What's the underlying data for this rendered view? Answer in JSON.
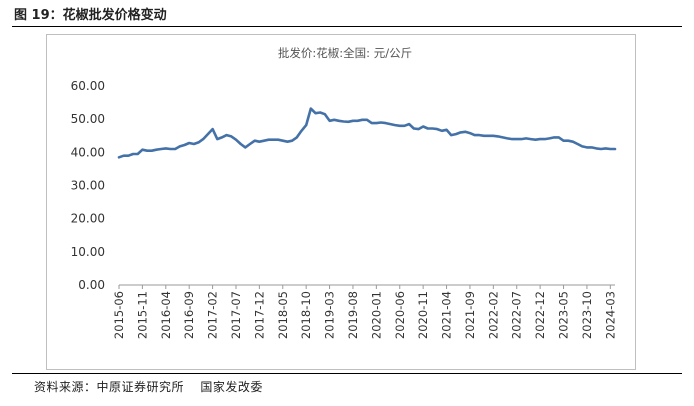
{
  "figure": {
    "title": "图 19：花椒批发价格变动",
    "source_label": "资料来源：中原证券研究所",
    "source_org": "国家发改委"
  },
  "chart_data": {
    "type": "line",
    "title": "批发价:花椒:全国: 元/公斤",
    "xlabel": "",
    "ylabel": "",
    "ylim": [
      0,
      60
    ],
    "yticks": [
      "0.00",
      "10.00",
      "20.00",
      "30.00",
      "40.00",
      "50.00",
      "60.00"
    ],
    "xticks": [
      "2015-06",
      "2015-11",
      "2016-04",
      "2016-09",
      "2017-02",
      "2017-07",
      "2017-12",
      "2018-05",
      "2018-10",
      "2019-03",
      "2019-08",
      "2020-01",
      "2020-06",
      "2020-11",
      "2021-04",
      "2021-09",
      "2022-02",
      "2022-07",
      "2022-12",
      "2023-05",
      "2023-10",
      "2024-03"
    ],
    "grid": false,
    "legend": "none",
    "line_color": "#4472a8",
    "series": [
      {
        "x": [
          "2015-06",
          "2015-07",
          "2015-08",
          "2015-09",
          "2015-10",
          "2015-11",
          "2015-12",
          "2016-01",
          "2016-02",
          "2016-03",
          "2016-04",
          "2016-05",
          "2016-06",
          "2016-07",
          "2016-08",
          "2016-09",
          "2016-10",
          "2016-11",
          "2016-12",
          "2017-01",
          "2017-02",
          "2017-03",
          "2017-04",
          "2017-05",
          "2017-06",
          "2017-07",
          "2017-08",
          "2017-09",
          "2017-10",
          "2017-11",
          "2017-12",
          "2018-01",
          "2018-02",
          "2018-03",
          "2018-04",
          "2018-05",
          "2018-06",
          "2018-07",
          "2018-08",
          "2018-09",
          "2018-10",
          "2018-11",
          "2018-12",
          "2019-01",
          "2019-02",
          "2019-03",
          "2019-04",
          "2019-05",
          "2019-06",
          "2019-07",
          "2019-08",
          "2019-09",
          "2019-10",
          "2019-11",
          "2019-12",
          "2020-01",
          "2020-02",
          "2020-03",
          "2020-04",
          "2020-05",
          "2020-06",
          "2020-07",
          "2020-08",
          "2020-09",
          "2020-10",
          "2020-11",
          "2020-12",
          "2021-01",
          "2021-02",
          "2021-03",
          "2021-04",
          "2021-05",
          "2021-06",
          "2021-07",
          "2021-08",
          "2021-09",
          "2021-10",
          "2021-11",
          "2021-12",
          "2022-01",
          "2022-02",
          "2022-03",
          "2022-04",
          "2022-05",
          "2022-06",
          "2022-07",
          "2022-08",
          "2022-09",
          "2022-10",
          "2022-11",
          "2022-12",
          "2023-01",
          "2023-02",
          "2023-03",
          "2023-04",
          "2023-05",
          "2023-06",
          "2023-07",
          "2023-08",
          "2023-09",
          "2023-10",
          "2023-11",
          "2023-12",
          "2024-01",
          "2024-02",
          "2024-03",
          "2024-04"
        ],
        "values": [
          38.5,
          39.0,
          39.0,
          39.5,
          39.5,
          40.8,
          40.5,
          40.5,
          40.8,
          41.0,
          41.2,
          41.0,
          41.0,
          41.8,
          42.2,
          42.8,
          42.5,
          43.0,
          44.0,
          45.5,
          47.0,
          44.0,
          44.5,
          45.2,
          44.8,
          43.8,
          42.5,
          41.5,
          42.5,
          43.5,
          43.2,
          43.5,
          43.8,
          43.8,
          43.8,
          43.5,
          43.2,
          43.5,
          44.5,
          46.5,
          48.2,
          53.2,
          51.8,
          52.0,
          51.5,
          49.5,
          49.8,
          49.5,
          49.3,
          49.2,
          49.5,
          49.5,
          49.8,
          49.8,
          48.8,
          48.8,
          49.0,
          48.8,
          48.5,
          48.2,
          48.0,
          48.0,
          48.5,
          47.2,
          47.0,
          47.8,
          47.2,
          47.2,
          47.0,
          46.5,
          46.8,
          45.2,
          45.5,
          46.0,
          46.2,
          45.8,
          45.2,
          45.2,
          45.0,
          45.0,
          45.0,
          44.8,
          44.5,
          44.2,
          44.0,
          44.0,
          44.0,
          44.2,
          44.0,
          43.8,
          44.0,
          44.0,
          44.2,
          44.5,
          44.5,
          43.5,
          43.5,
          43.2,
          42.5,
          41.8,
          41.5,
          41.5,
          41.2,
          41.0,
          41.2,
          41.0,
          41.0
        ]
      }
    ]
  }
}
